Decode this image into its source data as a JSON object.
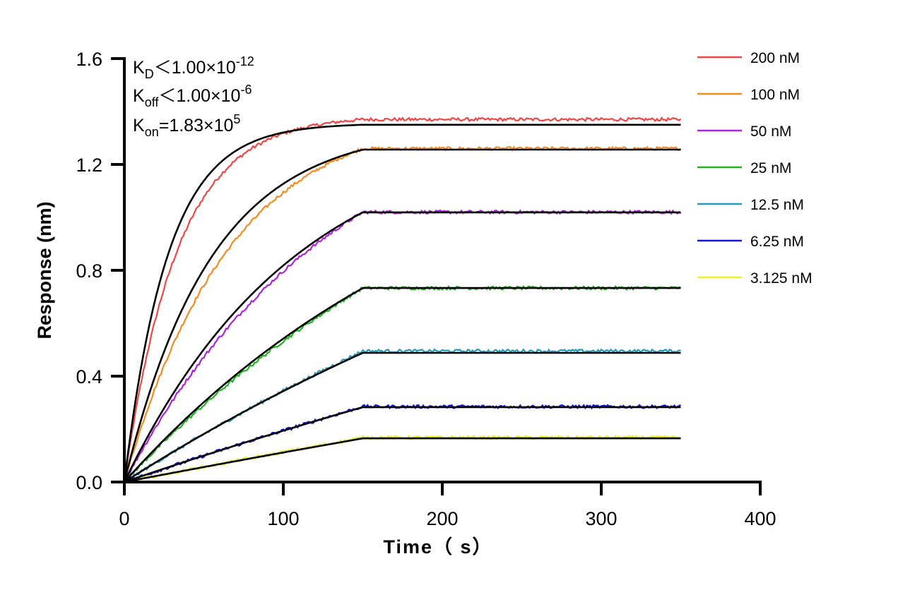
{
  "chart_data": {
    "type": "line",
    "xlabel": "Time（ s）",
    "ylabel": "Response (nm)",
    "xlim": [
      0,
      400
    ],
    "ylim": [
      0,
      1.6
    ],
    "xticks": [
      "0",
      "100",
      "200",
      "300",
      "400"
    ],
    "yticks": [
      "0.0",
      "0.4",
      "0.8",
      "1.2",
      "1.6"
    ],
    "grid": false,
    "legend_position": "right",
    "association_end": 150,
    "time_end": 350,
    "kon": 183000,
    "annotations": [
      {
        "main": "K",
        "sub": "D",
        "text": "＜1.00×10",
        "sup": "-12"
      },
      {
        "main": "K",
        "sub": "off",
        "text": "＜1.00×10",
        "sup": "-6"
      },
      {
        "main": "K",
        "sub": "on",
        "text": "=1.83×10",
        "sup": "5"
      }
    ],
    "fit_color": "#000000",
    "series": [
      {
        "name": "200 nM",
        "concentration_nM": 200,
        "color": "#f04545",
        "fit_plateau": 1.35,
        "measured_plateau": 1.37
      },
      {
        "name": "100 nM",
        "concentration_nM": 100,
        "color": "#f58a1f",
        "fit_plateau": 1.256,
        "measured_plateau": 1.26
      },
      {
        "name": "50 nM",
        "concentration_nM": 50,
        "color": "#b020e0",
        "fit_plateau": 1.019,
        "measured_plateau": 1.02
      },
      {
        "name": "25 nM",
        "concentration_nM": 25,
        "color": "#1fb51f",
        "fit_plateau": 0.733,
        "measured_plateau": 0.733
      },
      {
        "name": "12.5 nM",
        "concentration_nM": 12.5,
        "color": "#1e9cb8",
        "fit_plateau": 0.488,
        "measured_plateau": 0.495
      },
      {
        "name": "6.25 nM",
        "concentration_nM": 6.25,
        "color": "#1414e0",
        "fit_plateau": 0.283,
        "measured_plateau": 0.285
      },
      {
        "name": "3.125 nM",
        "concentration_nM": 3.125,
        "color": "#f0f020",
        "fit_plateau": 0.165,
        "measured_plateau": 0.168
      }
    ]
  }
}
